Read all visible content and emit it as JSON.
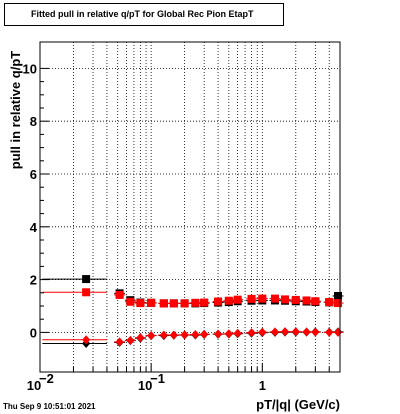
{
  "title": "Fitted pull in relative q/pT for Global Rec Pion EtapT",
  "timestamp": "Thu Sep  9 10:51:01 2021",
  "chart_data": {
    "type": "scatter",
    "title": "Fitted pull in relative q/pT for Global Rec Pion EtapT",
    "xlabel": "pT/|q| (GeV/c)",
    "ylabel": "pull in relative q/pT",
    "xscale": "log",
    "xlim": [
      0.01,
      5
    ],
    "ylim": [
      -1.5,
      11
    ],
    "grid": true,
    "x_ticks": [
      {
        "value": 0.01,
        "base": "10",
        "exp": "−2"
      },
      {
        "value": 0.1,
        "base": "10",
        "exp": "−1"
      },
      {
        "value": 1,
        "base": "1",
        "exp": ""
      }
    ],
    "y_ticks": [
      0,
      2,
      4,
      6,
      8,
      10
    ],
    "series": [
      {
        "color": "#000000",
        "marker": "square",
        "x": [
          0.026,
          0.052,
          0.065,
          0.08,
          0.1,
          0.13,
          0.16,
          0.2,
          0.25,
          0.3,
          0.4,
          0.5,
          0.6,
          0.8,
          1.0,
          1.3,
          1.6,
          2.0,
          2.5,
          3.0,
          4.0,
          4.8
        ],
        "y": [
          2.02,
          1.48,
          1.22,
          1.13,
          1.12,
          1.1,
          1.1,
          1.1,
          1.1,
          1.11,
          1.13,
          1.15,
          1.18,
          1.2,
          1.21,
          1.21,
          1.2,
          1.18,
          1.17,
          1.15,
          1.14,
          1.38
        ],
        "xerr_low": 0.0105
      },
      {
        "color": "#ff0000",
        "marker": "square",
        "x": [
          0.026,
          0.052,
          0.065,
          0.08,
          0.1,
          0.13,
          0.16,
          0.2,
          0.25,
          0.3,
          0.4,
          0.5,
          0.6,
          0.8,
          1.0,
          1.3,
          1.6,
          2.0,
          2.5,
          3.0,
          4.0,
          4.8
        ],
        "y": [
          1.52,
          1.42,
          1.16,
          1.11,
          1.12,
          1.1,
          1.1,
          1.1,
          1.12,
          1.13,
          1.17,
          1.2,
          1.24,
          1.27,
          1.28,
          1.28,
          1.25,
          1.23,
          1.21,
          1.18,
          1.15,
          1.11
        ],
        "xerr_low": 0.0105
      },
      {
        "color": "#000000",
        "marker": "diamond",
        "x": [
          0.026,
          0.052,
          0.065,
          0.08,
          0.1,
          0.13,
          0.16,
          0.2,
          0.25,
          0.3,
          0.4,
          0.5,
          0.6,
          0.8,
          1.0,
          1.3,
          1.6,
          2.0,
          2.5,
          3.0,
          4.0,
          4.8
        ],
        "y": [
          -0.42,
          -0.38,
          -0.31,
          -0.22,
          -0.12,
          -0.12,
          -0.11,
          -0.1,
          -0.1,
          -0.08,
          -0.07,
          -0.06,
          -0.05,
          -0.03,
          -0.01,
          0.0,
          0.01,
          0.01,
          0.01,
          0.02,
          0.01,
          0.02
        ],
        "xerr_low": 0.0105
      },
      {
        "color": "#ff0000",
        "marker": "diamond",
        "x": [
          0.026,
          0.052,
          0.065,
          0.08,
          0.1,
          0.13,
          0.16,
          0.2,
          0.25,
          0.3,
          0.4,
          0.5,
          0.6,
          0.8,
          1.0,
          1.3,
          1.6,
          2.0,
          2.5,
          3.0,
          4.0,
          4.8
        ],
        "y": [
          -0.28,
          -0.36,
          -0.3,
          -0.2,
          -0.12,
          -0.1,
          -0.1,
          -0.09,
          -0.08,
          -0.07,
          -0.06,
          -0.05,
          -0.03,
          -0.01,
          0.01,
          0.02,
          0.03,
          0.03,
          0.02,
          0.01,
          0.0,
          0.0
        ],
        "xerr_low": 0.0105
      }
    ]
  }
}
